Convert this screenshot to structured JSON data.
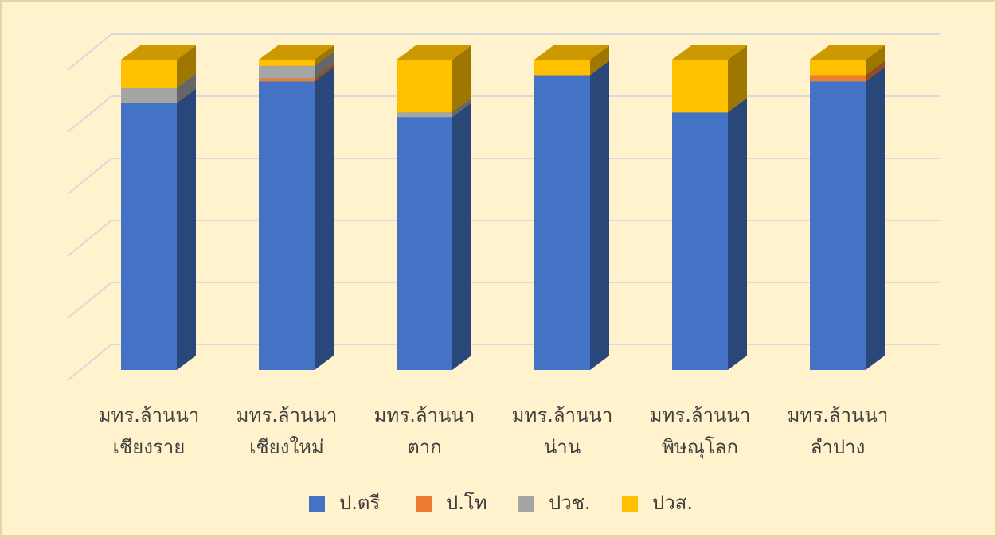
{
  "chart_data": {
    "type": "bar3d_stacked",
    "categories": [
      [
        "มทร.ล้านนา",
        "เชียงราย"
      ],
      [
        "มทร.ล้านนา",
        "เชียงใหม่"
      ],
      [
        "มทร.ล้านนา",
        "ตาก"
      ],
      [
        "มทร.ล้านนา",
        "น่าน"
      ],
      [
        "มทร.ล้านนา",
        "พิษณุโลก"
      ],
      [
        "มทร.ล้านนา",
        "ลำปาง"
      ]
    ],
    "series": [
      {
        "name": "ป.ตรี",
        "color": "#4472c4",
        "values": [
          86,
          93,
          81.5,
          95,
          83,
          93
        ]
      },
      {
        "name": "ป.โท",
        "color": "#ed7d31",
        "values": [
          0,
          1,
          0,
          0,
          0,
          2
        ]
      },
      {
        "name": "ปวช.",
        "color": "#a5a5a5",
        "values": [
          5,
          4,
          1.5,
          0,
          0,
          0
        ]
      },
      {
        "name": "ปวส.",
        "color": "#ffc000",
        "values": [
          9,
          2,
          17,
          5,
          17,
          5
        ]
      }
    ],
    "ylim": [
      0,
      100
    ],
    "yticks": [
      0,
      20,
      40,
      60,
      80,
      100
    ],
    "grid": true,
    "legend": "bottom"
  }
}
